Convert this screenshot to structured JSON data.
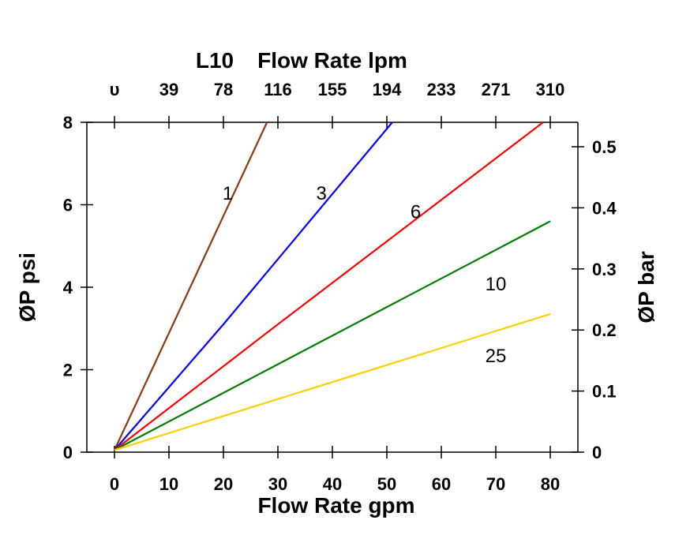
{
  "chart_data": {
    "type": "line",
    "title": "L10",
    "xlabel": "Flow Rate gpm",
    "ylabel": "ØP psi",
    "x2label": "Flow Rate lpm",
    "y2label": "ØP bar",
    "xlim": [
      -5,
      85
    ],
    "ylim": [
      0,
      8
    ],
    "y2lim": [
      0,
      0.54
    ],
    "x_ticks": [
      0,
      10,
      20,
      30,
      40,
      50,
      60,
      70,
      80
    ],
    "x_tick_labels": [
      "0",
      "10",
      "20",
      "30",
      "40",
      "50",
      "60",
      "70",
      "80"
    ],
    "x2_tick_labels": [
      "υ",
      "39",
      "78",
      "116",
      "155",
      "194",
      "233",
      "271",
      "310"
    ],
    "y_ticks": [
      0,
      2,
      4,
      6,
      8
    ],
    "y_tick_labels": [
      "0",
      "2",
      "4",
      "6",
      "8"
    ],
    "y2_ticks": [
      0,
      0.1,
      0.2,
      0.3,
      0.4,
      0.5
    ],
    "y2_tick_labels": [
      "0",
      "0.1",
      "0.2",
      "0.3",
      "0.4",
      "0.5"
    ],
    "grid": false,
    "series": [
      {
        "name": "1",
        "color": "#8B3A0F",
        "x": [
          0,
          28
        ],
        "y": [
          0.05,
          8
        ]
      },
      {
        "name": "3",
        "color": "#0000FF",
        "x": [
          0,
          20,
          51
        ],
        "y": [
          0.05,
          3.1,
          8
        ]
      },
      {
        "name": "6",
        "color": "#FF0000",
        "x": [
          0,
          30,
          78.7
        ],
        "y": [
          0.05,
          3.1,
          8
        ]
      },
      {
        "name": "10",
        "color": "#008000",
        "x": [
          0,
          80
        ],
        "y": [
          0.05,
          5.6
        ]
      },
      {
        "name": "25",
        "color": "#FFD000",
        "x": [
          0,
          80
        ],
        "y": [
          0.05,
          3.35
        ]
      }
    ],
    "annotations": [
      {
        "text": "1",
        "x": 20.8,
        "y": 6.3
      },
      {
        "text": "3",
        "x": 38,
        "y": 6.3
      },
      {
        "text": "6",
        "x": 55.3,
        "y": 5.85
      },
      {
        "text": "10",
        "x": 70,
        "y": 4.1
      },
      {
        "text": "25",
        "x": 70,
        "y": 2.35
      }
    ]
  }
}
